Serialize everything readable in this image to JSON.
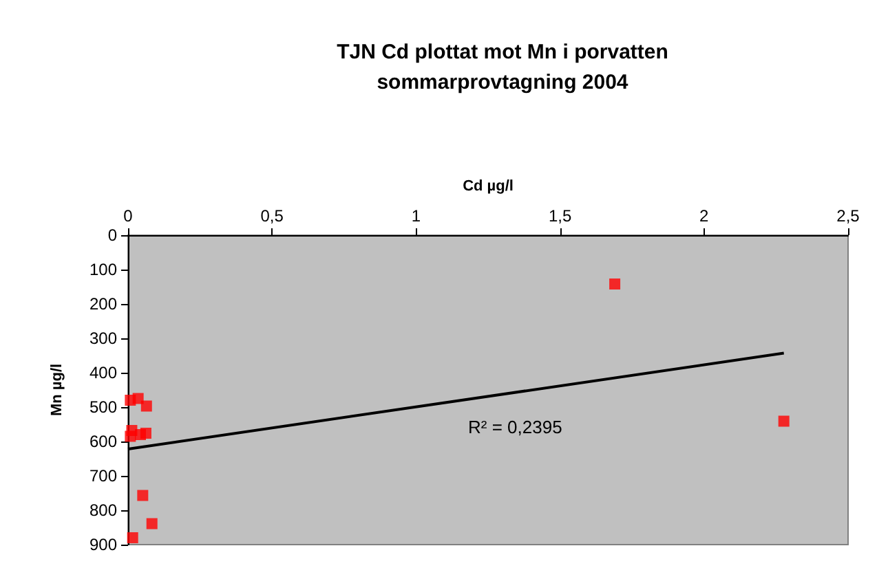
{
  "chart_data": {
    "type": "scatter",
    "title": "TJN Cd plottat mot Mn i porvatten\nsommarprovtagning 2004",
    "xlabel": "Cd µg/l",
    "ylabel": "Mn µg/l",
    "marker": "square",
    "grid": false,
    "xlim": [
      0,
      2.5
    ],
    "xticks": [
      0,
      {
        "value": 0.5,
        "label": "0,5"
      },
      1,
      {
        "value": 1.5,
        "label": "1,5"
      },
      2,
      {
        "value": 2.5,
        "label": "2,5"
      }
    ],
    "ylim": [
      900,
      0
    ],
    "yticks": [
      0,
      100,
      200,
      300,
      400,
      500,
      600,
      700,
      800,
      900
    ],
    "series": [
      {
        "color": "#ff0000",
        "x": [
          0.008,
          0.035,
          0.064,
          0.013,
          0.008,
          0.043,
          0.062,
          0.051,
          0.083,
          0.016,
          1.69,
          2.277
        ],
        "values": [
          480,
          475,
          497,
          568,
          585,
          580,
          576,
          757,
          839,
          880,
          142,
          541
        ]
      },
      {
        "type": "line",
        "color": "#000000",
        "marker": "none",
        "line_style": "solid",
        "x": [
          0,
          2.277
        ],
        "values": [
          622,
          343
        ]
      }
    ],
    "annotations": [
      "R² = 0,2395"
    ]
  }
}
